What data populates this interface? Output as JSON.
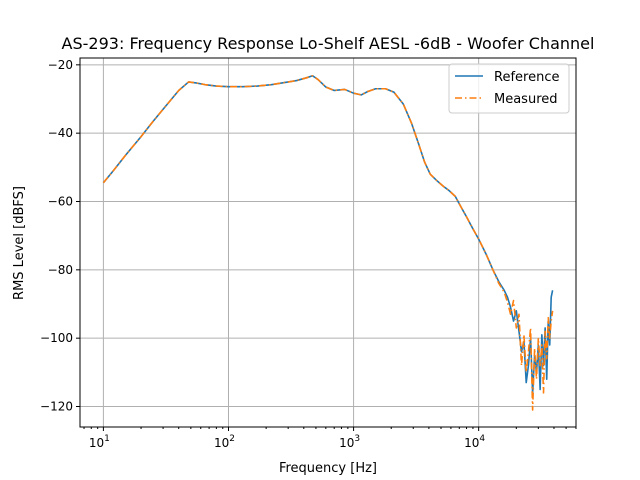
{
  "chart_data": {
    "type": "line",
    "title": "AS-293: Frequency Response Lo-Shelf AESL -6dB - Woofer Channel",
    "xlabel": "Frequency [Hz]",
    "ylabel": "RMS Level [dBFS]",
    "xscale": "log",
    "xlim": [
      6.5,
      60000
    ],
    "ylim": [
      -126,
      -18
    ],
    "grid": true,
    "legend": "top-right",
    "x_ticks": [
      {
        "value": 10,
        "base": "10",
        "exp": "1"
      },
      {
        "value": 100,
        "base": "10",
        "exp": "2"
      },
      {
        "value": 1000,
        "base": "10",
        "exp": "3"
      },
      {
        "value": 10000,
        "base": "10",
        "exp": "4"
      }
    ],
    "y_ticks": [
      {
        "value": -20,
        "label": "−20"
      },
      {
        "value": -40,
        "label": "−40"
      },
      {
        "value": -60,
        "label": "−60"
      },
      {
        "value": -80,
        "label": "−80"
      },
      {
        "value": -100,
        "label": "−100"
      },
      {
        "value": -120,
        "label": "−120"
      }
    ],
    "series": [
      {
        "name": "Reference",
        "color": "#1f77b4",
        "style": "solid",
        "x": [
          10,
          12,
          15,
          20,
          25,
          30,
          40,
          48,
          55,
          65,
          80,
          100,
          130,
          170,
          220,
          280,
          350,
          420,
          470,
          520,
          600,
          700,
          850,
          1000,
          1150,
          1300,
          1500,
          1800,
          2100,
          2500,
          2900,
          3300,
          3700,
          4100,
          4600,
          5200,
          5800,
          6500,
          7200,
          8000,
          9000,
          10000,
          11500,
          13000,
          14500,
          16000,
          17000,
          18000,
          19000,
          20000,
          21000,
          22000,
          23000,
          24000,
          25000,
          26000,
          27000,
          28000,
          29000,
          30000,
          31000,
          32000,
          33000,
          34000,
          35000,
          36000,
          37000,
          38000,
          39000
        ],
        "values": [
          -54.5,
          -51,
          -46.5,
          -41,
          -36.5,
          -33,
          -27.5,
          -25,
          -25.3,
          -25.8,
          -26.2,
          -26.4,
          -26.4,
          -26.2,
          -25.8,
          -25.2,
          -24.6,
          -23.8,
          -23.2,
          -24.3,
          -26.5,
          -27.5,
          -27.2,
          -28.3,
          -28.8,
          -27.8,
          -27,
          -27,
          -28,
          -31.5,
          -37,
          -43,
          -48.5,
          -52,
          -53.8,
          -55.5,
          -56.8,
          -58.5,
          -61.5,
          -64.5,
          -68,
          -71,
          -75.5,
          -80,
          -83.5,
          -86,
          -88,
          -91,
          -95,
          -92,
          -98,
          -104,
          -101,
          -113,
          -108,
          -100,
          -116,
          -105,
          -110,
          -102,
          -115,
          -99,
          -108,
          -97,
          -112,
          -95,
          -102,
          -88,
          -86
        ]
      },
      {
        "name": "Measured",
        "color": "#ff7f0e",
        "style": "dashdot",
        "x": [
          10,
          12,
          15,
          20,
          25,
          30,
          40,
          48,
          55,
          65,
          80,
          100,
          130,
          170,
          220,
          280,
          350,
          420,
          470,
          520,
          600,
          700,
          850,
          1000,
          1150,
          1300,
          1500,
          1800,
          2100,
          2500,
          2900,
          3300,
          3700,
          4100,
          4600,
          5200,
          5800,
          6500,
          7200,
          8000,
          9000,
          10000,
          11500,
          13000,
          14500,
          16000,
          17000,
          18000,
          19000,
          20000,
          21000,
          22000,
          23000,
          24000,
          25000,
          26000,
          27000,
          28000,
          29000,
          30000,
          31000,
          32000,
          33000,
          34000,
          35000,
          36000,
          37000,
          38000,
          39000
        ],
        "values": [
          -54.5,
          -51,
          -46.5,
          -41,
          -36.5,
          -33,
          -27.5,
          -25,
          -25.3,
          -25.8,
          -26.2,
          -26.4,
          -26.4,
          -26.2,
          -25.8,
          -25.2,
          -24.6,
          -23.8,
          -23.2,
          -24.3,
          -26.5,
          -27.5,
          -27.2,
          -28.3,
          -28.8,
          -27.8,
          -27,
          -27,
          -28,
          -31.5,
          -37,
          -43,
          -48.5,
          -52,
          -53.8,
          -55.5,
          -56.8,
          -58.5,
          -61.5,
          -64.5,
          -68,
          -71,
          -75.5,
          -80,
          -84,
          -86.5,
          -89.5,
          -93,
          -89,
          -97,
          -93,
          -108,
          -99,
          -110,
          -104,
          -97,
          -121,
          -103,
          -112,
          -100,
          -108,
          -102,
          -116,
          -98,
          -106,
          -94,
          -100,
          -95,
          -92
        ]
      }
    ]
  }
}
